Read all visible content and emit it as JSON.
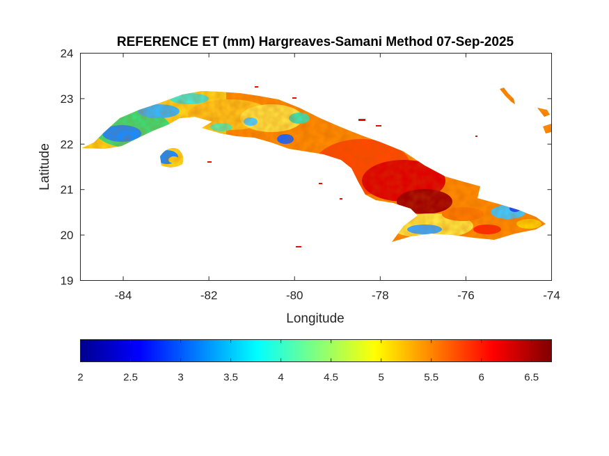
{
  "title": "REFERENCE ET (mm) Hargreaves-Samani Method  07-Sep-2025",
  "map": {
    "xlabel": "Longitude",
    "ylabel": "Latitude",
    "xlim": [
      -85,
      -74
    ],
    "ylim": [
      19,
      24
    ],
    "xticks": [
      "-84",
      "-82",
      "-80",
      "-78",
      "-76",
      "-74"
    ],
    "yticks": [
      "19",
      "20",
      "21",
      "22",
      "23",
      "24"
    ],
    "xtick_values": [
      -84,
      -82,
      -80,
      -78,
      -76,
      -74
    ],
    "ytick_values": [
      19,
      20,
      21,
      22,
      23,
      24
    ],
    "region": "Cuba",
    "field_description": "Gridded reference evapotranspiration over the island; western and central-north areas mostly yellow-green with blue patches (~2.5-4 mm), central and eastern lowlands orange-red to dark red (~5.5-6.7 mm), south-east coast mixed with blue patches."
  },
  "colorbar": {
    "colormap": "jet",
    "range": [
      2,
      6.7
    ],
    "ticks": [
      "2",
      "2.5",
      "3",
      "3.5",
      "4",
      "4.5",
      "5",
      "5.5",
      "6",
      "6.5"
    ],
    "tick_values": [
      2,
      2.5,
      3,
      3.5,
      4,
      4.5,
      5,
      5.5,
      6,
      6.5
    ],
    "colors": [
      "#00008f",
      "#0000ff",
      "#00ffff",
      "#ffff00",
      "#ff0000",
      "#800000"
    ]
  }
}
